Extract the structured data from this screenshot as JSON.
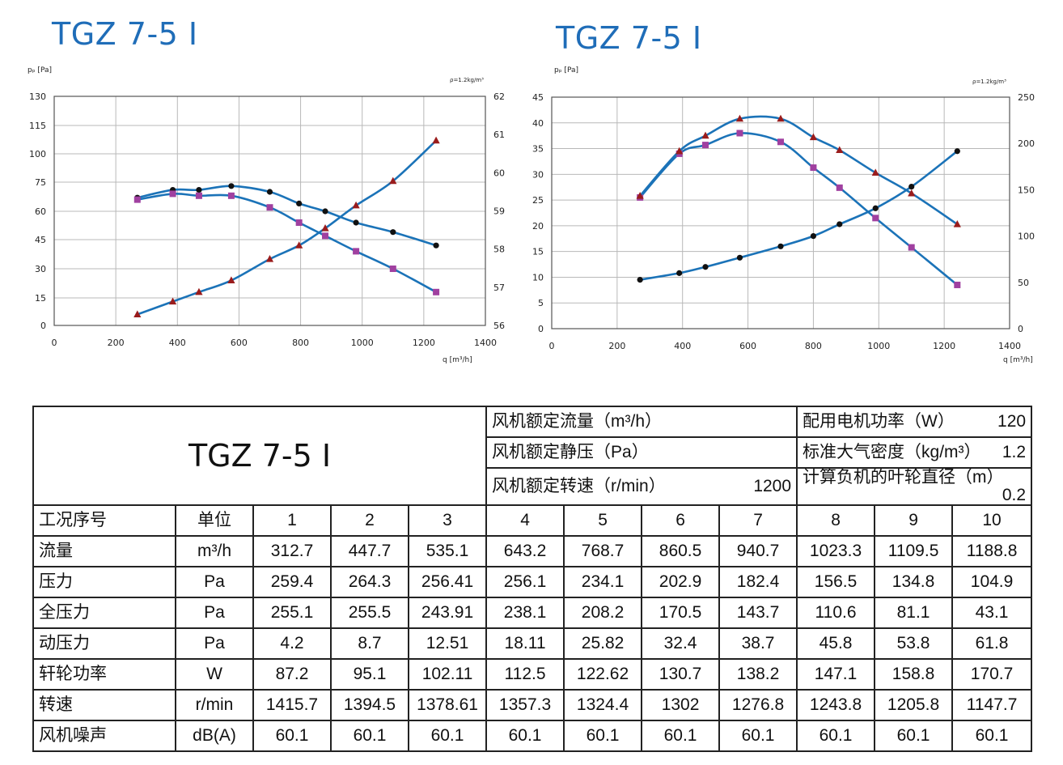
{
  "titles": {
    "left": "TGZ 7-5 I",
    "right": "TGZ 7-5 I"
  },
  "chart_data": [
    {
      "type": "line",
      "ylabel": "pₚ [Pa]",
      "xlabel": "q [m³/h]",
      "density_note": "ρ=1.2kg/m³",
      "xlim": [
        0,
        1400
      ],
      "xticks": [
        0,
        200,
        400,
        600,
        800,
        1000,
        1200,
        1400
      ],
      "ylim": [
        0,
        130
      ],
      "yticks": [
        0,
        15,
        30,
        45,
        60,
        75,
        100,
        115,
        130
      ],
      "y2lim": [
        56,
        62
      ],
      "y2ticks": [
        56,
        57,
        58,
        59,
        60,
        61,
        62
      ],
      "grid": true,
      "series": [
        {
          "marker": "circle",
          "color": "#111111",
          "axis": "left",
          "x": [
            270,
            385,
            470,
            575,
            700,
            795,
            880,
            980,
            1100,
            1240
          ],
          "y": [
            67,
            71,
            71,
            73,
            70,
            64,
            60,
            54,
            49,
            42
          ]
        },
        {
          "marker": "square",
          "color": "#a040a0",
          "axis": "left",
          "x": [
            270,
            385,
            470,
            575,
            700,
            795,
            880,
            980,
            1100,
            1240
          ],
          "y": [
            66,
            69,
            68,
            68,
            62,
            54,
            47,
            39,
            30,
            18
          ]
        },
        {
          "marker": "triangle",
          "color": "#9a1c1c",
          "axis": "left",
          "x": [
            270,
            385,
            470,
            575,
            700,
            795,
            880,
            980,
            1100,
            1240
          ],
          "y": [
            6,
            13,
            18,
            24,
            35,
            42,
            51,
            63,
            76,
            107
          ]
        }
      ]
    },
    {
      "type": "line",
      "ylabel": "pₚ [Pa]",
      "xlabel": "q [m³/h]",
      "density_note": "ρ=1.2kg/m³",
      "xlim": [
        0,
        1400
      ],
      "xticks": [
        0,
        200,
        400,
        600,
        800,
        1000,
        1200,
        1400
      ],
      "ylim": [
        0,
        45
      ],
      "yticks": [
        0,
        5,
        10,
        15,
        20,
        25,
        30,
        35,
        40,
        45
      ],
      "y2lim": [
        0,
        250
      ],
      "y2ticks": [
        0,
        50,
        100,
        150,
        200,
        250
      ],
      "grid": true,
      "series": [
        {
          "marker": "circle",
          "color": "#111111",
          "axis": "left",
          "x": [
            270,
            390,
            470,
            575,
            700,
            800,
            880,
            990,
            1100,
            1240
          ],
          "y": [
            9.5,
            10.8,
            12,
            13.8,
            16,
            18,
            20.3,
            23.4,
            27.6,
            34.5
          ]
        },
        {
          "marker": "square",
          "color": "#a040a0",
          "axis": "left",
          "x": [
            270,
            390,
            470,
            575,
            700,
            800,
            880,
            990,
            1100,
            1240
          ],
          "y": [
            25.5,
            34,
            35.7,
            38,
            36.3,
            31.3,
            27.4,
            21.5,
            15.8,
            8.5
          ]
        },
        {
          "marker": "triangle",
          "color": "#9a1c1c",
          "axis": "left",
          "x": [
            270,
            390,
            470,
            575,
            700,
            800,
            880,
            990,
            1100,
            1240
          ],
          "y": [
            25.8,
            34.5,
            37.5,
            40.8,
            40.8,
            37.2,
            34.7,
            30.3,
            26.3,
            20.3
          ]
        }
      ]
    }
  ],
  "table": {
    "model": "TGZ 7-5 I",
    "specs": [
      {
        "label": "风机额定流量（m³/h）",
        "value": "",
        "label2": "配用电机功率（W）",
        "value2": "120"
      },
      {
        "label": "风机额定静压（Pa）",
        "value": "",
        "label2": "标准大气密度（kg/m³）",
        "value2": "1.2"
      },
      {
        "label": "风机额定转速（r/min）",
        "value": "1200",
        "label2": "计算负机的叶轮直径（m）",
        "value2": "0.2"
      }
    ],
    "header": {
      "label": "工况序号",
      "unit": "单位",
      "cols": [
        "1",
        "2",
        "3",
        "4",
        "5",
        "6",
        "7",
        "8",
        "9",
        "10"
      ]
    },
    "rows": [
      {
        "label": "流量",
        "unit": "m³/h",
        "values": [
          "312.7",
          "447.7",
          "535.1",
          "643.2",
          "768.7",
          "860.5",
          "940.7",
          "1023.3",
          "1109.5",
          "1188.8"
        ]
      },
      {
        "label": "压力",
        "unit": "Pa",
        "values": [
          "259.4",
          "264.3",
          "256.41",
          "256.1",
          "234.1",
          "202.9",
          "182.4",
          "156.5",
          "134.8",
          "104.9"
        ]
      },
      {
        "label": "全压力",
        "unit": "Pa",
        "values": [
          "255.1",
          "255.5",
          "243.91",
          "238.1",
          "208.2",
          "170.5",
          "143.7",
          "110.6",
          "81.1",
          "43.1"
        ]
      },
      {
        "label": "动压力",
        "unit": "Pa",
        "values": [
          "4.2",
          "8.7",
          "12.51",
          "18.11",
          "25.82",
          "32.4",
          "38.7",
          "45.8",
          "53.8",
          "61.8"
        ]
      },
      {
        "label": "轩轮功率",
        "unit": "W",
        "values": [
          "87.2",
          "95.1",
          "102.11",
          "112.5",
          "122.62",
          "130.7",
          "138.2",
          "147.1",
          "158.8",
          "170.7"
        ]
      },
      {
        "label": "转速",
        "unit": "r/min",
        "values": [
          "1415.7",
          "1394.5",
          "1378.61",
          "1357.3",
          "1324.4",
          "1302",
          "1276.8",
          "1243.8",
          "1205.8",
          "1147.7"
        ]
      },
      {
        "label": "风机噪声",
        "unit": "dB(A)",
        "values": [
          "60.1",
          "60.1",
          "60.1",
          "60.1",
          "60.1",
          "60.1",
          "60.1",
          "60.1",
          "60.1",
          "60.1"
        ]
      }
    ]
  }
}
